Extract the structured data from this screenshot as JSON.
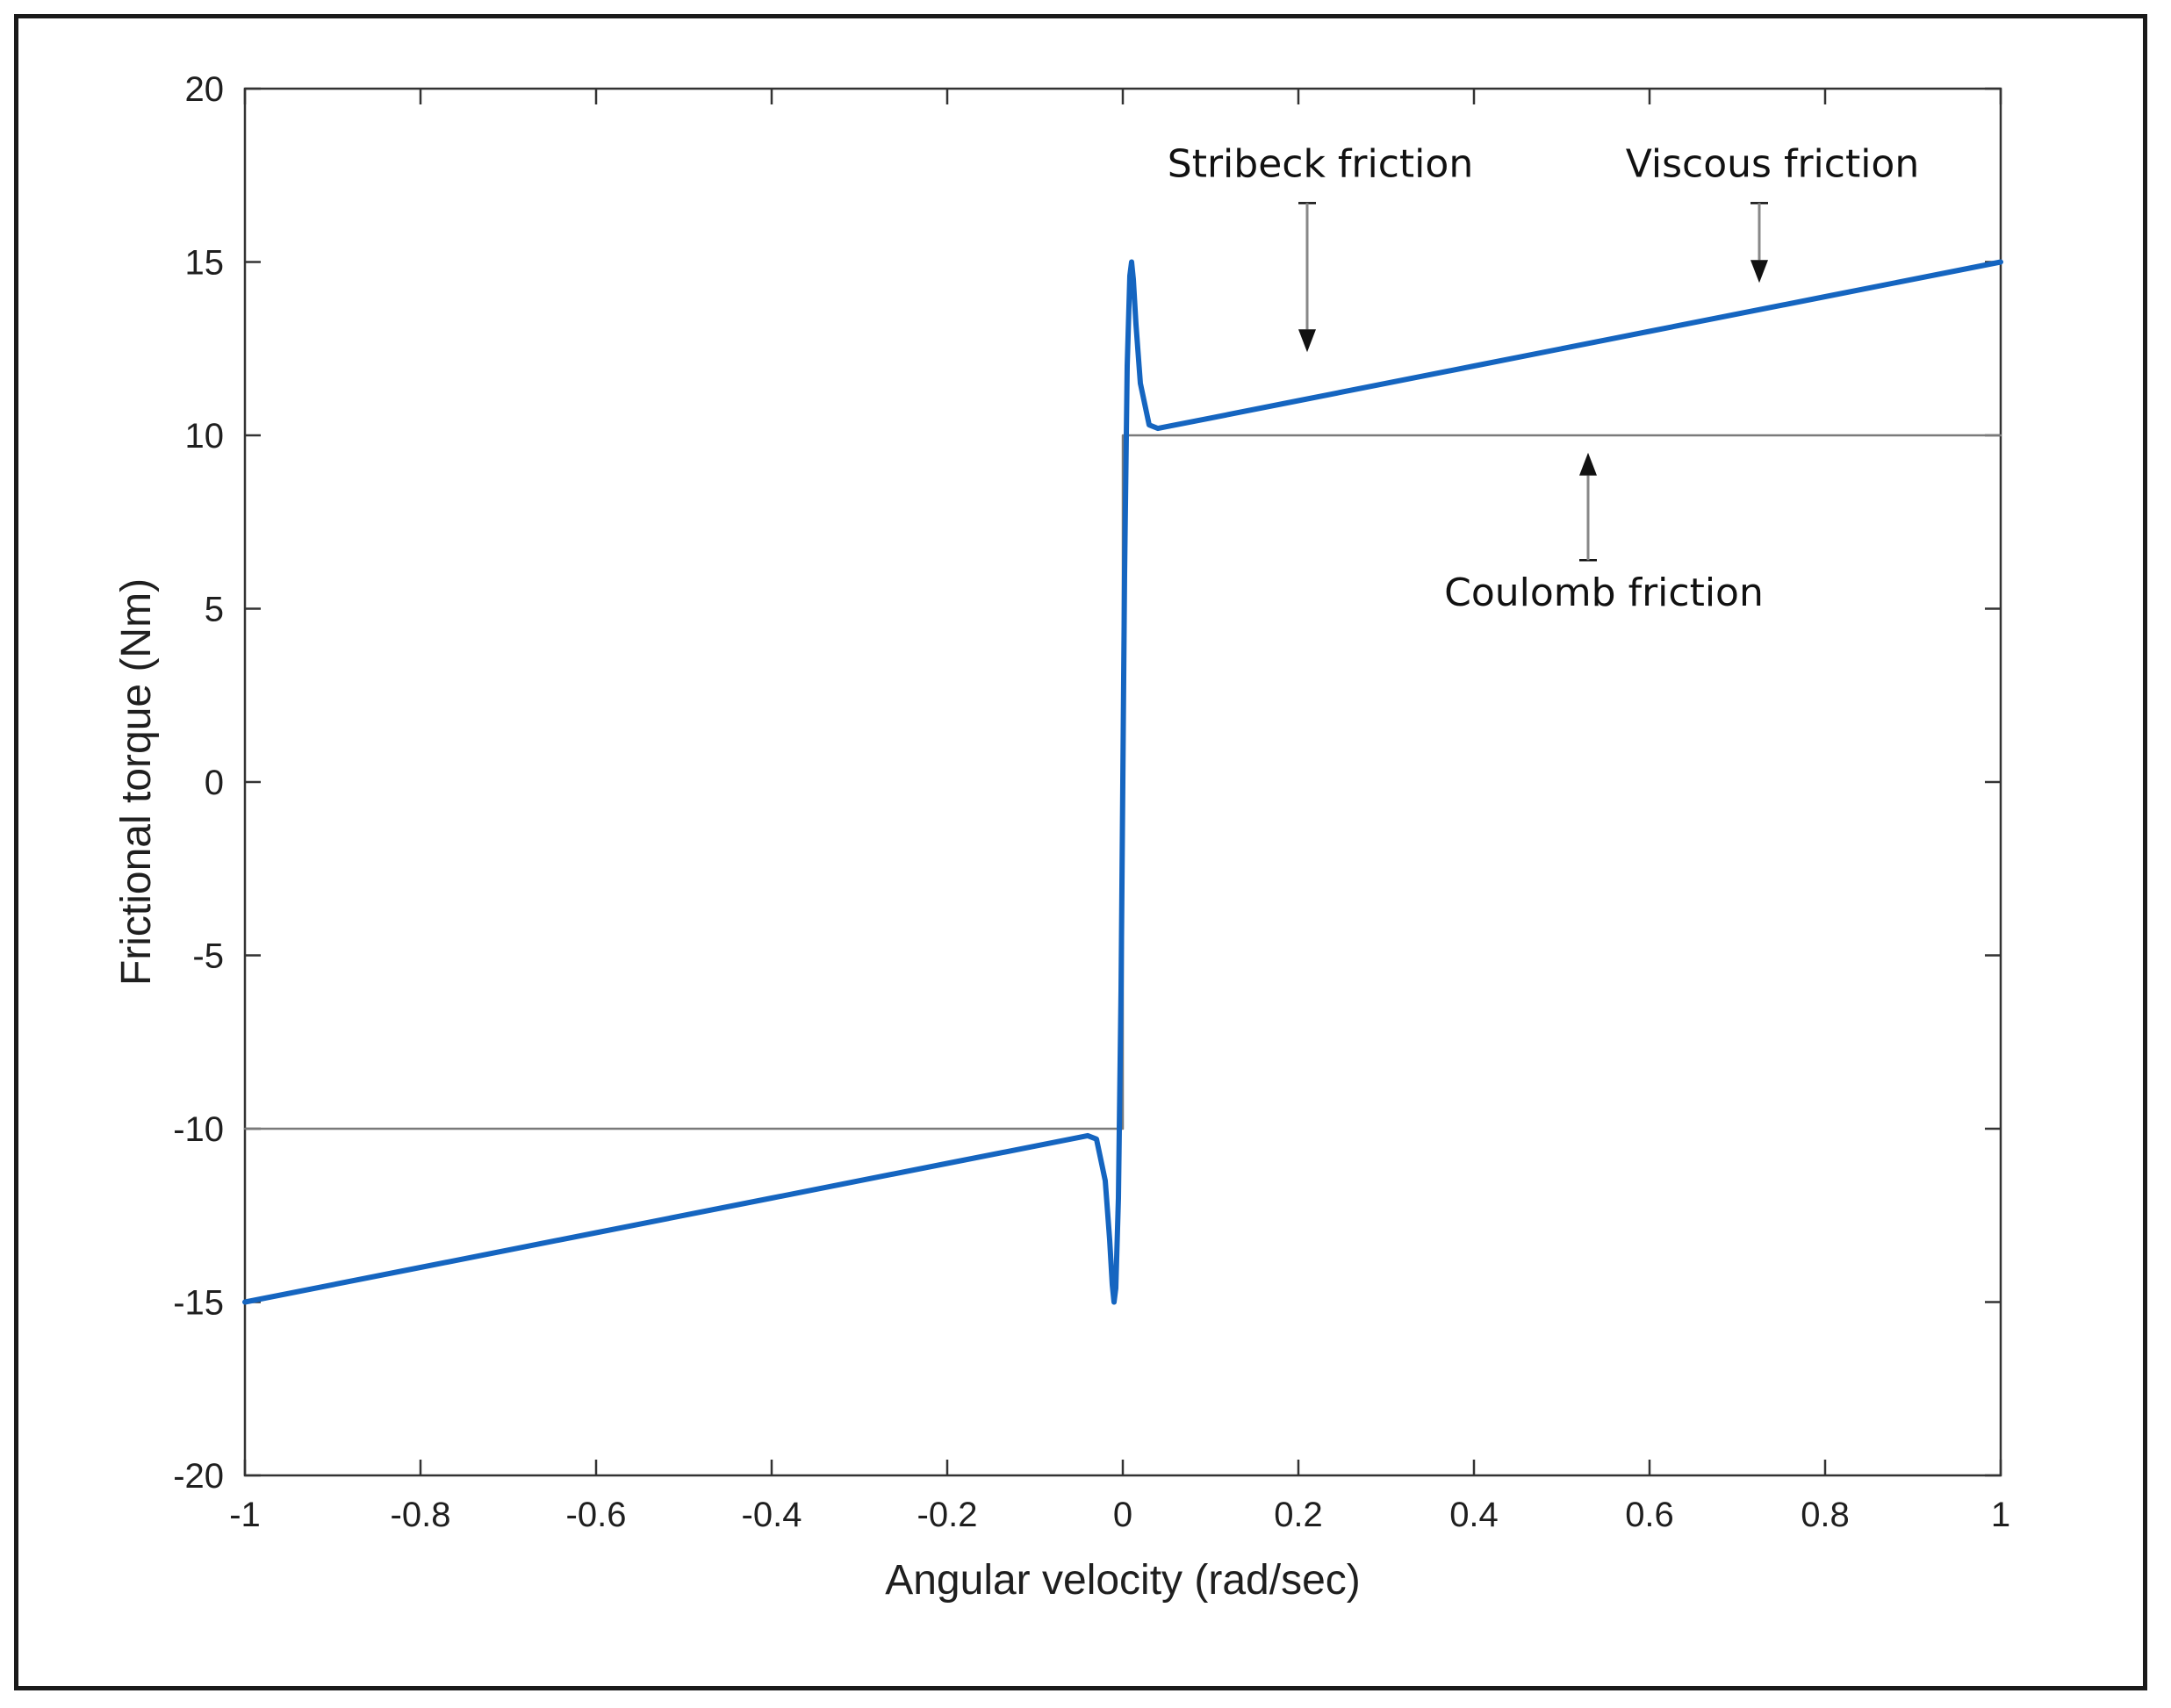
{
  "chart_data": {
    "type": "line",
    "title": "",
    "xlabel": "Angular velocity (rad/sec)",
    "ylabel": "Frictional torque (Nm)",
    "xlim": [
      -1,
      1
    ],
    "ylim": [
      -20,
      20
    ],
    "xticks": [
      -1,
      -0.8,
      -0.6,
      -0.4,
      -0.2,
      0,
      0.2,
      0.4,
      0.6,
      0.8,
      1
    ],
    "xtick_labels": [
      "-1",
      "-0.8",
      "-0.6",
      "-0.4",
      "-0.2",
      "0",
      "0.2",
      "0.4",
      "0.6",
      "0.8",
      "1"
    ],
    "yticks": [
      -20,
      -15,
      -10,
      -5,
      0,
      5,
      10,
      15,
      20
    ],
    "ytick_labels": [
      "-20",
      "-15",
      "-10",
      "-5",
      "0",
      "5",
      "10",
      "15",
      "20"
    ],
    "grid": false,
    "series": [
      {
        "color": "#1565c0",
        "x": [
          -1,
          -0.8,
          -0.6,
          -0.4,
          -0.2,
          -0.1,
          -0.05,
          -0.04,
          -0.03,
          -0.02,
          -0.015,
          -0.012,
          -0.01,
          -0.008,
          -0.005,
          -0.002,
          0,
          0.002,
          0.005,
          0.008,
          0.01,
          0.012,
          0.015,
          0.02,
          0.03,
          0.04,
          0.05,
          0.1,
          0.2,
          0.4,
          0.6,
          0.8,
          1
        ],
        "y": [
          -15,
          -14,
          -13,
          -12,
          -11,
          -10.5,
          -10.25,
          -10.2,
          -10.3,
          -11.5,
          -13.2,
          -14.5,
          -15,
          -14.6,
          -12,
          -6,
          0,
          6,
          12,
          14.6,
          15,
          14.5,
          13.2,
          11.5,
          10.3,
          10.2,
          10.25,
          10.5,
          11,
          12,
          13,
          14,
          15
        ]
      },
      {
        "color": "#7a7a7a",
        "x": [
          -1,
          0,
          0,
          1
        ],
        "y": [
          -10,
          -10,
          10,
          10
        ]
      }
    ],
    "annotations": [
      {
        "text": "Stribeck friction",
        "x": 0.21,
        "y_from": 16.7,
        "y_to": 12.4
      },
      {
        "text": "Viscous friction",
        "x": 0.725,
        "y_from": 16.7,
        "y_to": 14.4
      },
      {
        "text": "Coulomb friction",
        "x": 0.53,
        "y_from": 6.4,
        "y_to": 9.5
      }
    ]
  }
}
